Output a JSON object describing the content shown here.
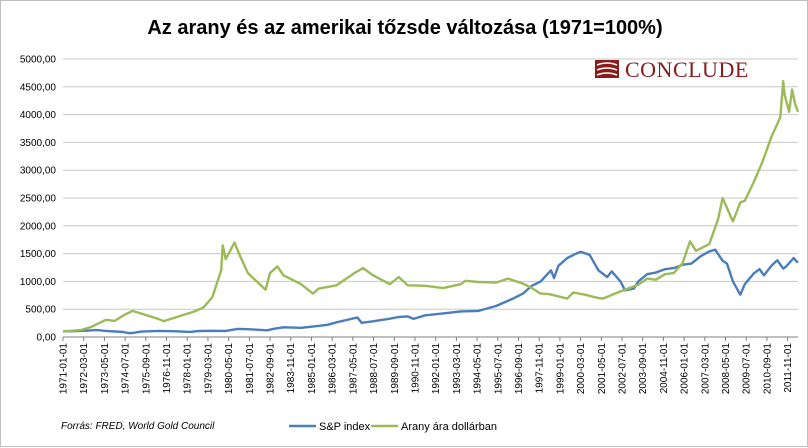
{
  "chart_data": {
    "type": "line",
    "title": "Az arany és az amerikai tőzsde változása  (1971=100%)",
    "ylim": [
      0,
      5000
    ],
    "y_ticks": [
      "0,00",
      "500,00",
      "1000,00",
      "1500,00",
      "2000,00",
      "2500,00",
      "3000,00",
      "3500,00",
      "4000,00",
      "4500,00",
      "5000,00"
    ],
    "y_tick_values": [
      0,
      500,
      1000,
      1500,
      2000,
      2500,
      3000,
      3500,
      4000,
      4500,
      5000
    ],
    "x_ticks": [
      "1971-01-01",
      "1972-03-01",
      "1973-05-01",
      "1974-07-01",
      "1975-09-01",
      "1976-11-01",
      "1978-01-01",
      "1979-03-01",
      "1980-05-01",
      "1981-07-01",
      "1982-09-01",
      "1983-11-01",
      "1985-01-01",
      "1986-03-01",
      "1987-05-01",
      "1988-07-01",
      "1989-09-01",
      "1990-11-01",
      "1992-01-01",
      "1993-03-01",
      "1994-05-01",
      "1995-07-01",
      "1996-09-01",
      "1997-11-01",
      "1999-01-01",
      "2000-03-01",
      "2001-05-01",
      "2002-07-01",
      "2003-09-01",
      "2004-11-01",
      "2006-01-01",
      "2007-03-01",
      "2008-05-01",
      "2009-07-01",
      "2010-09-01",
      "2011-11-01"
    ],
    "x_range": [
      "1971-01-01",
      "2012-06-01"
    ],
    "grid": "horizontal",
    "legend_position": "bottom",
    "series": [
      {
        "name": "S&P index",
        "color": "#4a7ebb",
        "points": [
          [
            "1971-01-01",
            100
          ],
          [
            "1972-01-01",
            110
          ],
          [
            "1972-12-01",
            125
          ],
          [
            "1973-06-01",
            110
          ],
          [
            "1974-06-01",
            90
          ],
          [
            "1974-09-01",
            70
          ],
          [
            "1974-12-01",
            72
          ],
          [
            "1975-06-01",
            98
          ],
          [
            "1976-06-01",
            110
          ],
          [
            "1977-06-01",
            102
          ],
          [
            "1978-03-01",
            92
          ],
          [
            "1978-09-01",
            108
          ],
          [
            "1979-06-01",
            112
          ],
          [
            "1980-03-01",
            110
          ],
          [
            "1980-11-01",
            145
          ],
          [
            "1981-06-01",
            140
          ],
          [
            "1982-07-01",
            120
          ],
          [
            "1982-12-01",
            150
          ],
          [
            "1983-06-01",
            175
          ],
          [
            "1984-06-01",
            165
          ],
          [
            "1985-01-01",
            185
          ],
          [
            "1985-12-01",
            220
          ],
          [
            "1986-06-01",
            265
          ],
          [
            "1987-08-01",
            350
          ],
          [
            "1987-11-01",
            255
          ],
          [
            "1988-06-01",
            280
          ],
          [
            "1989-06-01",
            330
          ],
          [
            "1989-12-01",
            360
          ],
          [
            "1990-06-01",
            370
          ],
          [
            "1990-10-01",
            325
          ],
          [
            "1991-06-01",
            390
          ],
          [
            "1992-06-01",
            425
          ],
          [
            "1993-06-01",
            460
          ],
          [
            "1994-06-01",
            470
          ],
          [
            "1995-06-01",
            560
          ],
          [
            "1995-12-01",
            630
          ],
          [
            "1996-06-01",
            700
          ],
          [
            "1996-12-01",
            780
          ],
          [
            "1997-06-01",
            920
          ],
          [
            "1997-12-01",
            1000
          ],
          [
            "1998-07-01",
            1200
          ],
          [
            "1998-09-01",
            1060
          ],
          [
            "1998-12-01",
            1280
          ],
          [
            "1999-06-01",
            1420
          ],
          [
            "1999-12-01",
            1500
          ],
          [
            "2000-03-01",
            1530
          ],
          [
            "2000-09-01",
            1480
          ],
          [
            "2001-03-01",
            1200
          ],
          [
            "2001-09-01",
            1080
          ],
          [
            "2001-12-01",
            1180
          ],
          [
            "2002-06-01",
            1000
          ],
          [
            "2002-09-01",
            840
          ],
          [
            "2003-03-01",
            870
          ],
          [
            "2003-06-01",
            1000
          ],
          [
            "2003-12-01",
            1130
          ],
          [
            "2004-06-01",
            1160
          ],
          [
            "2004-12-01",
            1220
          ],
          [
            "2005-06-01",
            1240
          ],
          [
            "2005-12-01",
            1300
          ],
          [
            "2006-06-01",
            1320
          ],
          [
            "2006-12-01",
            1450
          ],
          [
            "2007-06-01",
            1540
          ],
          [
            "2007-10-01",
            1570
          ],
          [
            "2008-03-01",
            1370
          ],
          [
            "2008-06-01",
            1320
          ],
          [
            "2008-10-01",
            1000
          ],
          [
            "2009-03-01",
            760
          ],
          [
            "2009-06-01",
            950
          ],
          [
            "2009-12-01",
            1140
          ],
          [
            "2010-04-01",
            1220
          ],
          [
            "2010-07-01",
            1110
          ],
          [
            "2010-12-01",
            1280
          ],
          [
            "2011-04-01",
            1380
          ],
          [
            "2011-08-01",
            1230
          ],
          [
            "2011-10-01",
            1270
          ],
          [
            "2012-03-01",
            1420
          ],
          [
            "2012-05-01",
            1360
          ],
          [
            "2012-06-01",
            1340
          ]
        ]
      },
      {
        "name": "Arany ára dollárban",
        "color": "#9bbb59",
        "points": [
          [
            "1971-01-01",
            100
          ],
          [
            "1972-01-01",
            125
          ],
          [
            "1972-08-01",
            180
          ],
          [
            "1973-06-01",
            310
          ],
          [
            "1973-12-01",
            290
          ],
          [
            "1974-06-01",
            390
          ],
          [
            "1974-12-01",
            470
          ],
          [
            "1975-06-01",
            420
          ],
          [
            "1976-06-01",
            320
          ],
          [
            "1976-09-01",
            285
          ],
          [
            "1977-06-01",
            360
          ],
          [
            "1978-06-01",
            460
          ],
          [
            "1978-12-01",
            530
          ],
          [
            "1979-06-01",
            720
          ],
          [
            "1979-12-01",
            1200
          ],
          [
            "1980-01-01",
            1650
          ],
          [
            "1980-03-01",
            1400
          ],
          [
            "1980-09-01",
            1700
          ],
          [
            "1980-12-01",
            1500
          ],
          [
            "1981-06-01",
            1150
          ],
          [
            "1981-12-01",
            1000
          ],
          [
            "1982-06-01",
            850
          ],
          [
            "1982-09-01",
            1150
          ],
          [
            "1983-02-01",
            1270
          ],
          [
            "1983-06-01",
            1110
          ],
          [
            "1984-06-01",
            950
          ],
          [
            "1985-02-01",
            780
          ],
          [
            "1985-06-01",
            870
          ],
          [
            "1986-06-01",
            930
          ],
          [
            "1987-06-01",
            1150
          ],
          [
            "1987-12-01",
            1240
          ],
          [
            "1988-06-01",
            1120
          ],
          [
            "1989-06-01",
            950
          ],
          [
            "1989-12-01",
            1080
          ],
          [
            "1990-06-01",
            930
          ],
          [
            "1991-06-01",
            920
          ],
          [
            "1992-06-01",
            880
          ],
          [
            "1993-06-01",
            950
          ],
          [
            "1993-09-01",
            1010
          ],
          [
            "1994-06-01",
            990
          ],
          [
            "1995-06-01",
            980
          ],
          [
            "1996-02-01",
            1050
          ],
          [
            "1996-12-01",
            960
          ],
          [
            "1997-06-01",
            880
          ],
          [
            "1997-12-01",
            780
          ],
          [
            "1998-06-01",
            770
          ],
          [
            "1999-06-01",
            690
          ],
          [
            "1999-10-01",
            800
          ],
          [
            "2000-06-01",
            760
          ],
          [
            "2001-03-01",
            700
          ],
          [
            "2001-06-01",
            690
          ],
          [
            "2002-06-01",
            820
          ],
          [
            "2003-06-01",
            940
          ],
          [
            "2003-12-01",
            1050
          ],
          [
            "2004-06-01",
            1030
          ],
          [
            "2004-12-01",
            1130
          ],
          [
            "2005-06-01",
            1150
          ],
          [
            "2005-12-01",
            1330
          ],
          [
            "2006-05-01",
            1720
          ],
          [
            "2006-09-01",
            1550
          ],
          [
            "2007-06-01",
            1670
          ],
          [
            "2007-12-01",
            2120
          ],
          [
            "2008-03-01",
            2500
          ],
          [
            "2008-10-01",
            2080
          ],
          [
            "2009-03-01",
            2420
          ],
          [
            "2009-06-01",
            2450
          ],
          [
            "2009-12-01",
            2780
          ],
          [
            "2010-06-01",
            3150
          ],
          [
            "2010-12-01",
            3600
          ],
          [
            "2011-06-01",
            3950
          ],
          [
            "2011-08-01",
            4600
          ],
          [
            "2011-09-01",
            4350
          ],
          [
            "2011-12-01",
            4050
          ],
          [
            "2012-02-01",
            4450
          ],
          [
            "2012-04-01",
            4200
          ],
          [
            "2012-06-01",
            4050
          ]
        ]
      }
    ]
  },
  "source": "Forrás: FRED, World Gold Council",
  "logo": {
    "text": "CONCLUDE",
    "icon": "conclude-logo-icon",
    "color": "#8b1a1a"
  }
}
